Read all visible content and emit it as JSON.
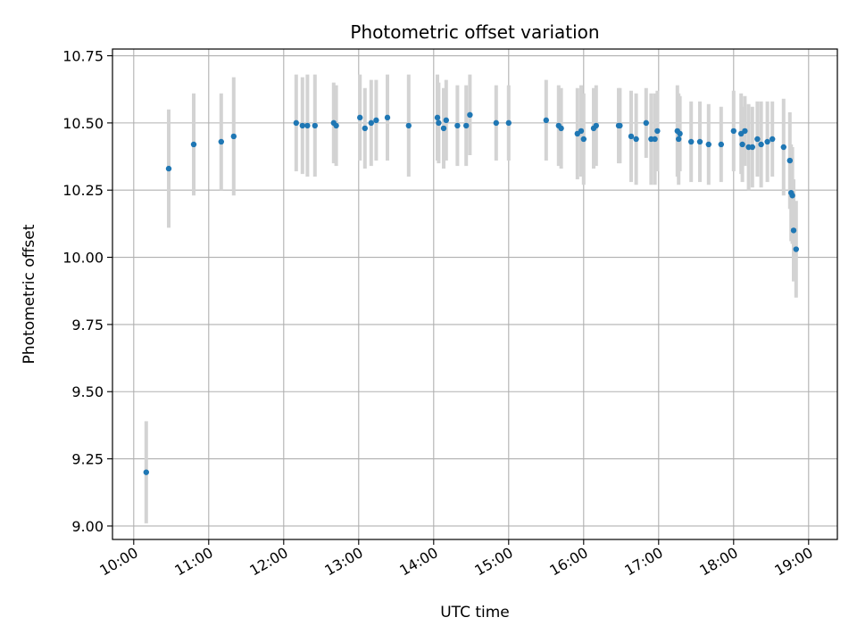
{
  "chart_data": {
    "type": "scatter",
    "title": "Photometric offset variation",
    "xlabel": "UTC time",
    "ylabel": "Photometric offset",
    "xlim": [
      "09:43",
      "19:23"
    ],
    "ylim": [
      8.95,
      10.775
    ],
    "x_ticks": [
      "10:00",
      "11:00",
      "12:00",
      "13:00",
      "14:00",
      "15:00",
      "16:00",
      "17:00",
      "18:00",
      "19:00"
    ],
    "y_ticks": [
      "9.00",
      "9.25",
      "9.50",
      "9.75",
      "10.00",
      "10.25",
      "10.50",
      "10.75"
    ],
    "grid": true,
    "point_color": "#1f77b4",
    "errorbar_color": "#d3d3d3",
    "series": [
      {
        "x": [
          "10:10",
          "10:28",
          "10:48",
          "11:10",
          "11:20",
          "12:10",
          "12:15",
          "12:19",
          "12:25",
          "12:40",
          "12:42",
          "13:01",
          "13:05",
          "13:10",
          "13:14",
          "13:23",
          "13:40",
          "14:03",
          "14:04",
          "14:08",
          "14:10",
          "14:19",
          "14:26",
          "14:29",
          "14:50",
          "15:00",
          "15:30",
          "15:40",
          "15:42",
          "15:55",
          "15:58",
          "16:00",
          "16:08",
          "16:10",
          "16:28",
          "16:29",
          "16:38",
          "16:42",
          "16:50",
          "16:54",
          "16:57",
          "16:59",
          "17:15",
          "17:16",
          "17:17",
          "17:26",
          "17:33",
          "17:40",
          "17:50",
          "18:00",
          "18:06",
          "18:07",
          "18:09",
          "18:12",
          "18:15",
          "18:19",
          "18:22",
          "18:27",
          "18:31",
          "18:40",
          "18:45",
          "18:46",
          "18:47",
          "18:48",
          "18:50"
        ],
        "y": [
          9.2,
          10.33,
          10.42,
          10.43,
          10.45,
          10.5,
          10.49,
          10.49,
          10.49,
          10.5,
          10.49,
          10.52,
          10.48,
          10.5,
          10.51,
          10.52,
          10.49,
          10.52,
          10.5,
          10.48,
          10.51,
          10.49,
          10.49,
          10.53,
          10.5,
          10.5,
          10.51,
          10.49,
          10.48,
          10.46,
          10.47,
          10.44,
          10.48,
          10.49,
          10.49,
          10.49,
          10.45,
          10.44,
          10.5,
          10.44,
          10.44,
          10.47,
          10.47,
          10.44,
          10.46,
          10.43,
          10.43,
          10.42,
          10.42,
          10.47,
          10.46,
          10.42,
          10.47,
          10.41,
          10.41,
          10.44,
          10.42,
          10.43,
          10.44,
          10.41,
          10.36,
          10.24,
          10.23,
          10.1,
          10.03
        ],
        "y_error": [
          0.19,
          0.22,
          0.19,
          0.18,
          0.22,
          0.18,
          0.18,
          0.19,
          0.19,
          0.15,
          0.15,
          0.16,
          0.15,
          0.16,
          0.15,
          0.16,
          0.19,
          0.16,
          0.15,
          0.15,
          0.15,
          0.15,
          0.15,
          0.15,
          0.14,
          0.14,
          0.15,
          0.15,
          0.15,
          0.17,
          0.17,
          0.17,
          0.15,
          0.15,
          0.14,
          0.14,
          0.17,
          0.17,
          0.13,
          0.17,
          0.17,
          0.15,
          0.17,
          0.17,
          0.14,
          0.15,
          0.15,
          0.15,
          0.14,
          0.15,
          0.15,
          0.14,
          0.13,
          0.16,
          0.15,
          0.14,
          0.16,
          0.15,
          0.14,
          0.18,
          0.18,
          0.18,
          0.18,
          0.19,
          0.18
        ]
      }
    ]
  }
}
